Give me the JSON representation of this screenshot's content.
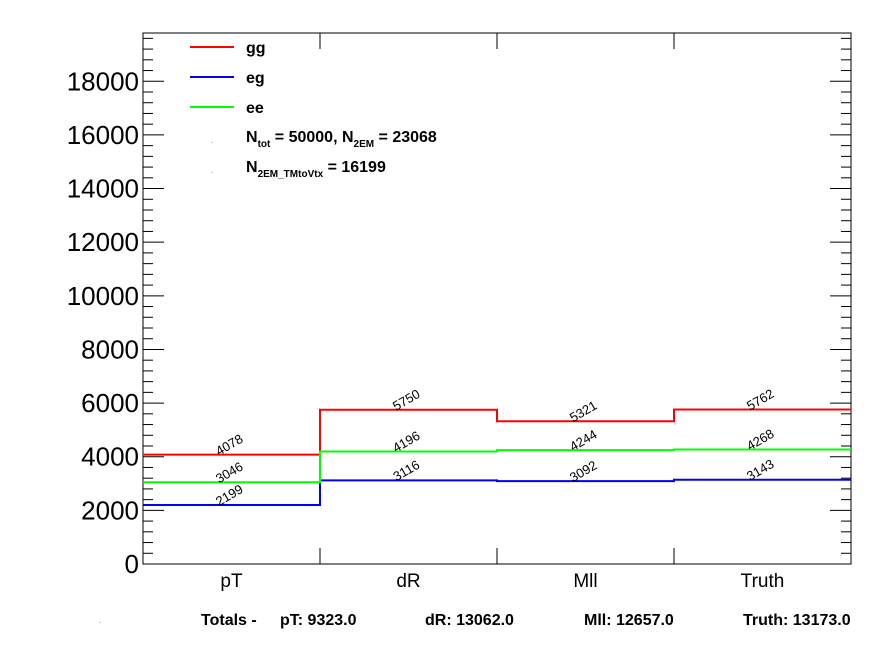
{
  "chart_data": {
    "type": "histogram-step",
    "categories": [
      "pT",
      "dR",
      "Mll",
      "Truth"
    ],
    "ylim": [
      0,
      19800
    ],
    "y_ticks": [
      "0",
      "2000",
      "4000",
      "6000",
      "8000",
      "10000",
      "12000",
      "14000",
      "16000",
      "18000"
    ],
    "y_tick_values": [
      0,
      2000,
      4000,
      6000,
      8000,
      10000,
      12000,
      14000,
      16000,
      18000
    ],
    "grid": false,
    "legend_position": "top-left",
    "series": [
      {
        "name": "gg",
        "color": "#ff0000",
        "values": [
          4078,
          5750,
          5321,
          5762
        ],
        "labels": [
          "4078",
          "5750",
          "5321",
          "5762"
        ]
      },
      {
        "name": "eg",
        "color": "#0000ff",
        "values": [
          2199,
          3116,
          3092,
          3143
        ],
        "labels": [
          "2199",
          "3116",
          "3092",
          "3143"
        ]
      },
      {
        "name": "ee",
        "color": "#00ff00",
        "values": [
          3046,
          4196,
          4244,
          4268
        ],
        "labels": [
          "3046",
          "4196",
          "4244",
          "4268"
        ]
      }
    ],
    "annotations": {
      "line1": {
        "N": "N",
        "sub1": "tot",
        "mid": " = 50000, N",
        "sub2": "2EM",
        "tail": " = 23068"
      },
      "line2": {
        "N": "N",
        "sub1": "2EM_TMtoVtx",
        "tail": "  = 16199"
      }
    }
  },
  "footer": {
    "prefix": "Totals -",
    "pt": "pT: 9323.0",
    "dr": "dR: 13062.0",
    "mll": "Mll: 12657.0",
    "truth": "Truth: 13173.0"
  }
}
